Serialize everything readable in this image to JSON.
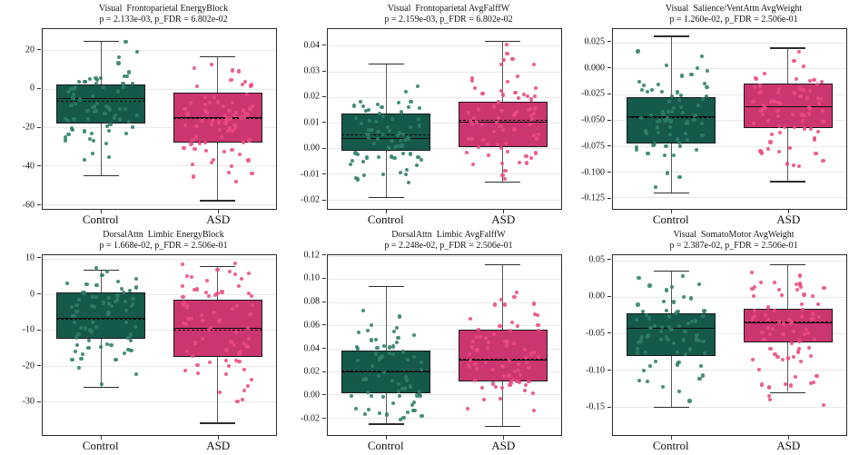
{
  "figure": {
    "background": "#ffffff",
    "rows": 2,
    "cols": 3
  },
  "colors": {
    "control_box_fill": "#15594a",
    "asd_box_fill": "#cc3670",
    "control_dot": "#2f7d69",
    "asd_dot": "#ea4a82",
    "box_edge": "#191919",
    "median_line": "#0e0e0e",
    "whisker": "#5a5a5a",
    "gridline": "#e8e8e8",
    "spine": "#2b2b2b"
  },
  "chart_data": {
    "type": "boxplot",
    "overlay": "strip-scatter",
    "grid": true,
    "jitter_seed": 11,
    "categories": [
      "Control",
      "ASD"
    ],
    "subplots": [
      {
        "title": "Visual  Frontoparietal EnergyBlock",
        "subtitle": "p = 2.133e-03, p_FDR = 6.802e-02",
        "ylim": [
          -62.5,
          31
        ],
        "yticks": [
          {
            "v": 20,
            "label": "20"
          },
          {
            "v": 0,
            "label": "0"
          },
          {
            "v": -20,
            "label": "-20"
          },
          {
            "v": -40,
            "label": "-40"
          },
          {
            "v": -60,
            "label": "-60"
          }
        ],
        "groups": [
          {
            "name": "Control",
            "box": {
              "whisker_low": -45,
              "q1": -18,
              "median": -5,
              "mean": -6.5,
              "q3": 2,
              "whisker_high": 25
            },
            "scatter": {
              "count": 70,
              "mean": -7,
              "sd": 13,
              "min": -45,
              "max": 27
            }
          },
          {
            "name": "ASD",
            "box": {
              "whisker_low": -58,
              "q1": -28,
              "median": -15,
              "mean": -15.5,
              "q3": -2,
              "whisker_high": 17
            },
            "scatter": {
              "count": 73,
              "mean": -15,
              "sd": 15,
              "min": -58,
              "max": 17
            }
          }
        ]
      },
      {
        "title": "Visual  Frontoparietal AvgFalffW",
        "subtitle": "p = 2.159e-03, p_FDR = 6.802e-02",
        "ylim": [
          -0.0237,
          0.0465
        ],
        "yticks": [
          {
            "v": 0.04,
            "label": "0.04"
          },
          {
            "v": 0.03,
            "label": "0.03"
          },
          {
            "v": 0.02,
            "label": "0.02"
          },
          {
            "v": 0.01,
            "label": "0.01"
          },
          {
            "v": 0.0,
            "label": "0.00"
          },
          {
            "v": -0.01,
            "label": "-0.01"
          },
          {
            "v": -0.02,
            "label": "-0.02"
          }
        ],
        "groups": [
          {
            "name": "Control",
            "box": {
              "whisker_low": -0.019,
              "q1": -0.001,
              "median": 0.004,
              "mean": 0.0055,
              "q3": 0.0135,
              "whisker_high": 0.033
            },
            "scatter": {
              "count": 70,
              "mean": 0.005,
              "sd": 0.01,
              "min": -0.0205,
              "max": 0.033
            }
          },
          {
            "name": "ASD",
            "box": {
              "whisker_low": -0.013,
              "q1": 0.0005,
              "median": 0.0105,
              "mean": 0.011,
              "q3": 0.018,
              "whisker_high": 0.042
            },
            "scatter": {
              "count": 73,
              "mean": 0.01,
              "sd": 0.012,
              "min": -0.013,
              "max": 0.0445
            }
          }
        ]
      },
      {
        "title": "Visual  Salience/VentAttn AvgWeight",
        "subtitle": "p = 1.260e-02, p_FDR = 2.506e-01",
        "ylim": [
          -0.136,
          0.038
        ],
        "yticks": [
          {
            "v": 0.025,
            "label": "0.025"
          },
          {
            "v": 0.0,
            "label": "0.000"
          },
          {
            "v": -0.025,
            "label": "-0.025"
          },
          {
            "v": -0.05,
            "label": "-0.050"
          },
          {
            "v": -0.075,
            "label": "-0.075"
          },
          {
            "v": -0.1,
            "label": "-0.100"
          },
          {
            "v": -0.125,
            "label": "-0.125"
          }
        ],
        "groups": [
          {
            "name": "Control",
            "box": {
              "whisker_low": -0.12,
              "q1": -0.073,
              "median": -0.046,
              "mean": -0.047,
              "q3": -0.028,
              "whisker_high": 0.0315
            },
            "scatter": {
              "count": 70,
              "mean": -0.048,
              "sd": 0.027,
              "min": -0.128,
              "max": 0.03
            }
          },
          {
            "name": "ASD",
            "box": {
              "whisker_low": -0.109,
              "q1": -0.058,
              "median": -0.037,
              "mean": -0.0365,
              "q3": -0.015,
              "whisker_high": 0.02
            },
            "scatter": {
              "count": 73,
              "mean": -0.037,
              "sd": 0.028,
              "min": -0.118,
              "max": 0.03
            }
          }
        ]
      },
      {
        "title": "DorsalAttn  Limbic EnergyBlock",
        "subtitle": "p = 1.668e-02, p_FDR = 2.506e-01",
        "ylim": [
          -39.5,
          11
        ],
        "yticks": [
          {
            "v": 10,
            "label": "10"
          },
          {
            "v": 0,
            "label": "0"
          },
          {
            "v": -10,
            "label": "-10"
          },
          {
            "v": -20,
            "label": "-20"
          },
          {
            "v": -30,
            "label": "-30"
          }
        ],
        "groups": [
          {
            "name": "Control",
            "box": {
              "whisker_low": -26,
              "q1": -12.5,
              "median": -6.5,
              "mean": -6.8,
              "q3": 0.5,
              "whisker_high": 7
            },
            "scatter": {
              "count": 70,
              "mean": -6.5,
              "sd": 8.5,
              "min": -26,
              "max": 7.5
            }
          },
          {
            "name": "ASD",
            "box": {
              "whisker_low": -36,
              "q1": -17.5,
              "median": -9.5,
              "mean": -10,
              "q3": -1.5,
              "whisker_high": 8
            },
            "scatter": {
              "count": 73,
              "mean": -10,
              "sd": 11,
              "min": -37,
              "max": 9
            }
          }
        ]
      },
      {
        "title": "DorsalAttn  Limbic AvgFalffW",
        "subtitle": "p = 2.248e-02, p_FDR = 2.506e-01",
        "ylim": [
          -0.035,
          0.1205
        ],
        "yticks": [
          {
            "v": 0.12,
            "label": "0.12"
          },
          {
            "v": 0.1,
            "label": "0.10"
          },
          {
            "v": 0.08,
            "label": "0.08"
          },
          {
            "v": 0.06,
            "label": "0.06"
          },
          {
            "v": 0.04,
            "label": "0.04"
          },
          {
            "v": 0.02,
            "label": "0.02"
          },
          {
            "v": 0.0,
            "label": "0.00"
          },
          {
            "v": -0.02,
            "label": "-0.02"
          }
        ],
        "groups": [
          {
            "name": "Control",
            "box": {
              "whisker_low": -0.025,
              "q1": 0.001,
              "median": 0.02,
              "mean": 0.021,
              "q3": 0.038,
              "whisker_high": 0.094
            },
            "scatter": {
              "count": 70,
              "mean": 0.02,
              "sd": 0.026,
              "min": -0.027,
              "max": 0.094
            }
          },
          {
            "name": "ASD",
            "box": {
              "whisker_low": -0.027,
              "q1": 0.011,
              "median": 0.03,
              "mean": 0.031,
              "q3": 0.056,
              "whisker_high": 0.113
            },
            "scatter": {
              "count": 73,
              "mean": 0.032,
              "sd": 0.031,
              "min": -0.028,
              "max": 0.113
            }
          }
        ]
      },
      {
        "title": "Visual  SomatoMotor AvgWeight",
        "subtitle": "p = 2.387e-02, p_FDR = 2.506e-01",
        "ylim": [
          -0.189,
          0.057
        ],
        "yticks": [
          {
            "v": 0.05,
            "label": "0.05"
          },
          {
            "v": 0.0,
            "label": "0.00"
          },
          {
            "v": -0.05,
            "label": "-0.05"
          },
          {
            "v": -0.1,
            "label": "-0.10"
          },
          {
            "v": -0.15,
            "label": "-0.15"
          }
        ],
        "groups": [
          {
            "name": "Control",
            "box": {
              "whisker_low": -0.15,
              "q1": -0.081,
              "median": -0.043,
              "mean": -0.042,
              "q3": -0.023,
              "whisker_high": 0.036
            },
            "scatter": {
              "count": 70,
              "mean": -0.05,
              "sd": 0.04,
              "min": -0.177,
              "max": 0.036
            }
          },
          {
            "name": "ASD",
            "box": {
              "whisker_low": -0.13,
              "q1": -0.062,
              "median": -0.035,
              "mean": -0.034,
              "q3": -0.016,
              "whisker_high": 0.045
            },
            "scatter": {
              "count": 73,
              "mean": -0.04,
              "sd": 0.046,
              "min": -0.17,
              "max": 0.046
            }
          }
        ]
      }
    ]
  }
}
